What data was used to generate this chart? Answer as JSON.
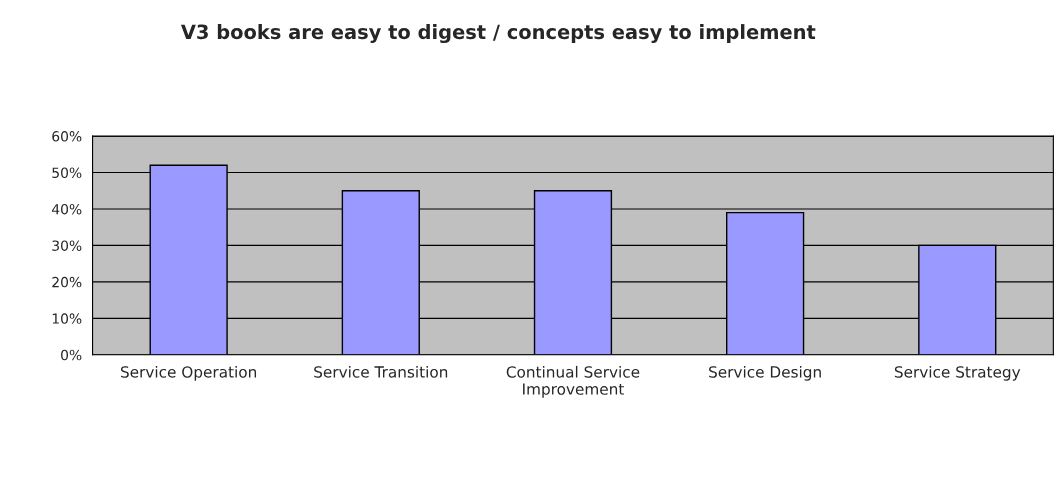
{
  "chart_data": {
    "type": "bar",
    "title": "V3 books are easy to digest / concepts easy to implement",
    "categories": [
      "Service Operation",
      "Service Transition",
      "Continual Service\nImprovement",
      "Service Design",
      "Service Strategy"
    ],
    "values": [
      52,
      45,
      45,
      39,
      30
    ],
    "color": "#9999ff",
    "ylim": [
      0,
      60
    ],
    "yticks": [
      {
        "value": 0,
        "label": "0%"
      },
      {
        "value": 10,
        "label": "10%"
      },
      {
        "value": 20,
        "label": "20%"
      },
      {
        "value": 30,
        "label": "30%"
      },
      {
        "value": 40,
        "label": "40%"
      },
      {
        "value": 50,
        "label": "50%"
      },
      {
        "value": 60,
        "label": "60%"
      }
    ],
    "grid": "y",
    "legend": false
  }
}
